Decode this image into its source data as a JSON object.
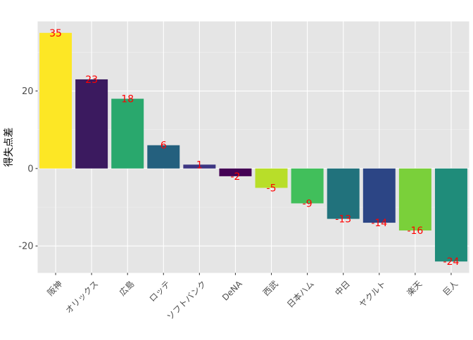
{
  "chart_data": {
    "type": "bar",
    "title": "",
    "xlabel": "",
    "ylabel": "得失点差",
    "categories": [
      "阪神",
      "オリックス",
      "広島",
      "ロッテ",
      "ソフトバンク",
      "DeNA",
      "西武",
      "日本ハム",
      "中日",
      "ヤクルト",
      "楽天",
      "巨人"
    ],
    "values": [
      35,
      23,
      18,
      6,
      1,
      -2,
      -5,
      -9,
      -13,
      -14,
      -16,
      -24
    ],
    "data_labels": [
      "35",
      "23",
      "18",
      "6",
      "1",
      "-2",
      "-5",
      "-9",
      "-13",
      "-14",
      "-16",
      "-24"
    ],
    "ylim": [
      -26.95,
      37.95
    ],
    "y_ticks": [
      -20,
      0,
      20
    ],
    "y_tick_labels": [
      "-20",
      "0",
      "20"
    ],
    "grid": true,
    "legend": "none",
    "colors": {
      "panel_background": "#e5e5e5",
      "grid_major": "#ffffff",
      "grid_minor": "#f2f2f2",
      "data_label": "#ff0000",
      "axis_text": "#4d4d4d",
      "axis_title": "#000000",
      "bars": [
        "#fde725",
        "#3b1a5f",
        "#29a86d",
        "#24607e",
        "#3d3683",
        "#440154",
        "#b8de29",
        "#41bf5b",
        "#21727c",
        "#2c4585",
        "#7ad03a",
        "#1f8c7a"
      ]
    }
  }
}
